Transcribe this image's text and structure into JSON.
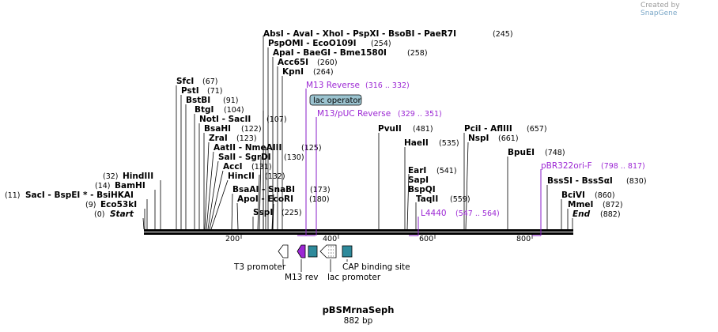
{
  "credit": {
    "prefix": "Created by",
    "brand": "SnapGene"
  },
  "map": {
    "name": "pBSMrnaSeph",
    "length": "882 bp"
  },
  "ruler": {
    "ticks": [
      "200",
      "400",
      "600",
      "800"
    ]
  },
  "sites_top": [
    {
      "text": "AbsI  - AvaI  - XhoI  - PspXI  - BsoBI  - PaeR7I",
      "pos": "(245)"
    },
    {
      "text": "PspOMI  - EcoO109I",
      "pos": "(254)"
    },
    {
      "text": "ApaI  - BaeGI  - Bme1580I",
      "pos": "(258)"
    },
    {
      "text": "Acc65I",
      "pos": "(260)"
    },
    {
      "text": "KpnI",
      "pos": "(264)"
    }
  ],
  "sites_left": [
    {
      "text": "SfcI",
      "pos": "(67)"
    },
    {
      "text": "PstI",
      "pos": "(71)"
    },
    {
      "text": "BstBI",
      "pos": "(91)"
    },
    {
      "text": "BtgI",
      "pos": "(104)"
    },
    {
      "text": "NotI  - SacII",
      "pos": "(107)"
    },
    {
      "text": "BsaHI",
      "pos": "(122)"
    },
    {
      "text": "ZraI",
      "pos": "(123)"
    },
    {
      "text": "AatII  - NmeAIII",
      "pos": "(125)"
    },
    {
      "text": "SalI  - SgrDI",
      "pos": "(130)"
    },
    {
      "text": "AccI",
      "pos": "(131)"
    },
    {
      "text": "HincII",
      "pos": "(132)"
    },
    {
      "text": "BsaAI  - SnaBI",
      "pos": "(173)"
    },
    {
      "text": "ApoI  - EcoRI",
      "pos": "(180)"
    },
    {
      "text": "SspI",
      "pos": "(225)"
    }
  ],
  "sites_far_left": [
    {
      "pos": "(32)",
      "text": "HindIII"
    },
    {
      "pos": "(14)",
      "text": "BamHI"
    },
    {
      "pos": "(11)",
      "text": "SacI  - BspEI *  - BsiHKAI"
    },
    {
      "pos": "(9)",
      "text": "Eco53kI"
    },
    {
      "pos": "(0)",
      "text": "Start"
    }
  ],
  "sites_mid": [
    {
      "text": "PvuII",
      "pos": "(481)"
    },
    {
      "text": "HaeII",
      "pos": "(535)"
    },
    {
      "text": "EarI",
      "pos": "(541)"
    },
    {
      "text": "SapI",
      "pos": ""
    },
    {
      "text": "BspQI",
      "pos": ""
    },
    {
      "text": "TaqII",
      "pos": "(559)"
    }
  ],
  "sites_right": [
    {
      "text": "PciI  - AflIII",
      "pos": "(657)"
    },
    {
      "text": "NspI",
      "pos": "(661)"
    },
    {
      "text": "BpuEI",
      "pos": "(748)"
    },
    {
      "text": "BssSI  - BssSαI",
      "pos": "(830)"
    },
    {
      "text": "BciVI",
      "pos": "(860)"
    },
    {
      "text": "MmeI",
      "pos": "(872)"
    },
    {
      "text": "End",
      "pos": "(882)"
    }
  ],
  "primers": [
    {
      "name": "M13 Reverse",
      "range": "(316 .. 332)"
    },
    {
      "name": "M13/pUC Reverse",
      "range": "(329 .. 351)"
    },
    {
      "name": "L4440",
      "range": "(547 .. 564)"
    },
    {
      "name": "pBR322ori-F",
      "range": "(798 .. 817)"
    }
  ],
  "features": {
    "lac_operator": "lac operator",
    "t3_promoter": "T3 promoter",
    "m13_rev": "M13 rev",
    "lac_promoter": "lac promoter",
    "cap_site": "CAP binding site"
  },
  "colors": {
    "primer": "#9c27d4",
    "lac_operator": "#9bc3cf",
    "cap": "#2e8a9b"
  }
}
